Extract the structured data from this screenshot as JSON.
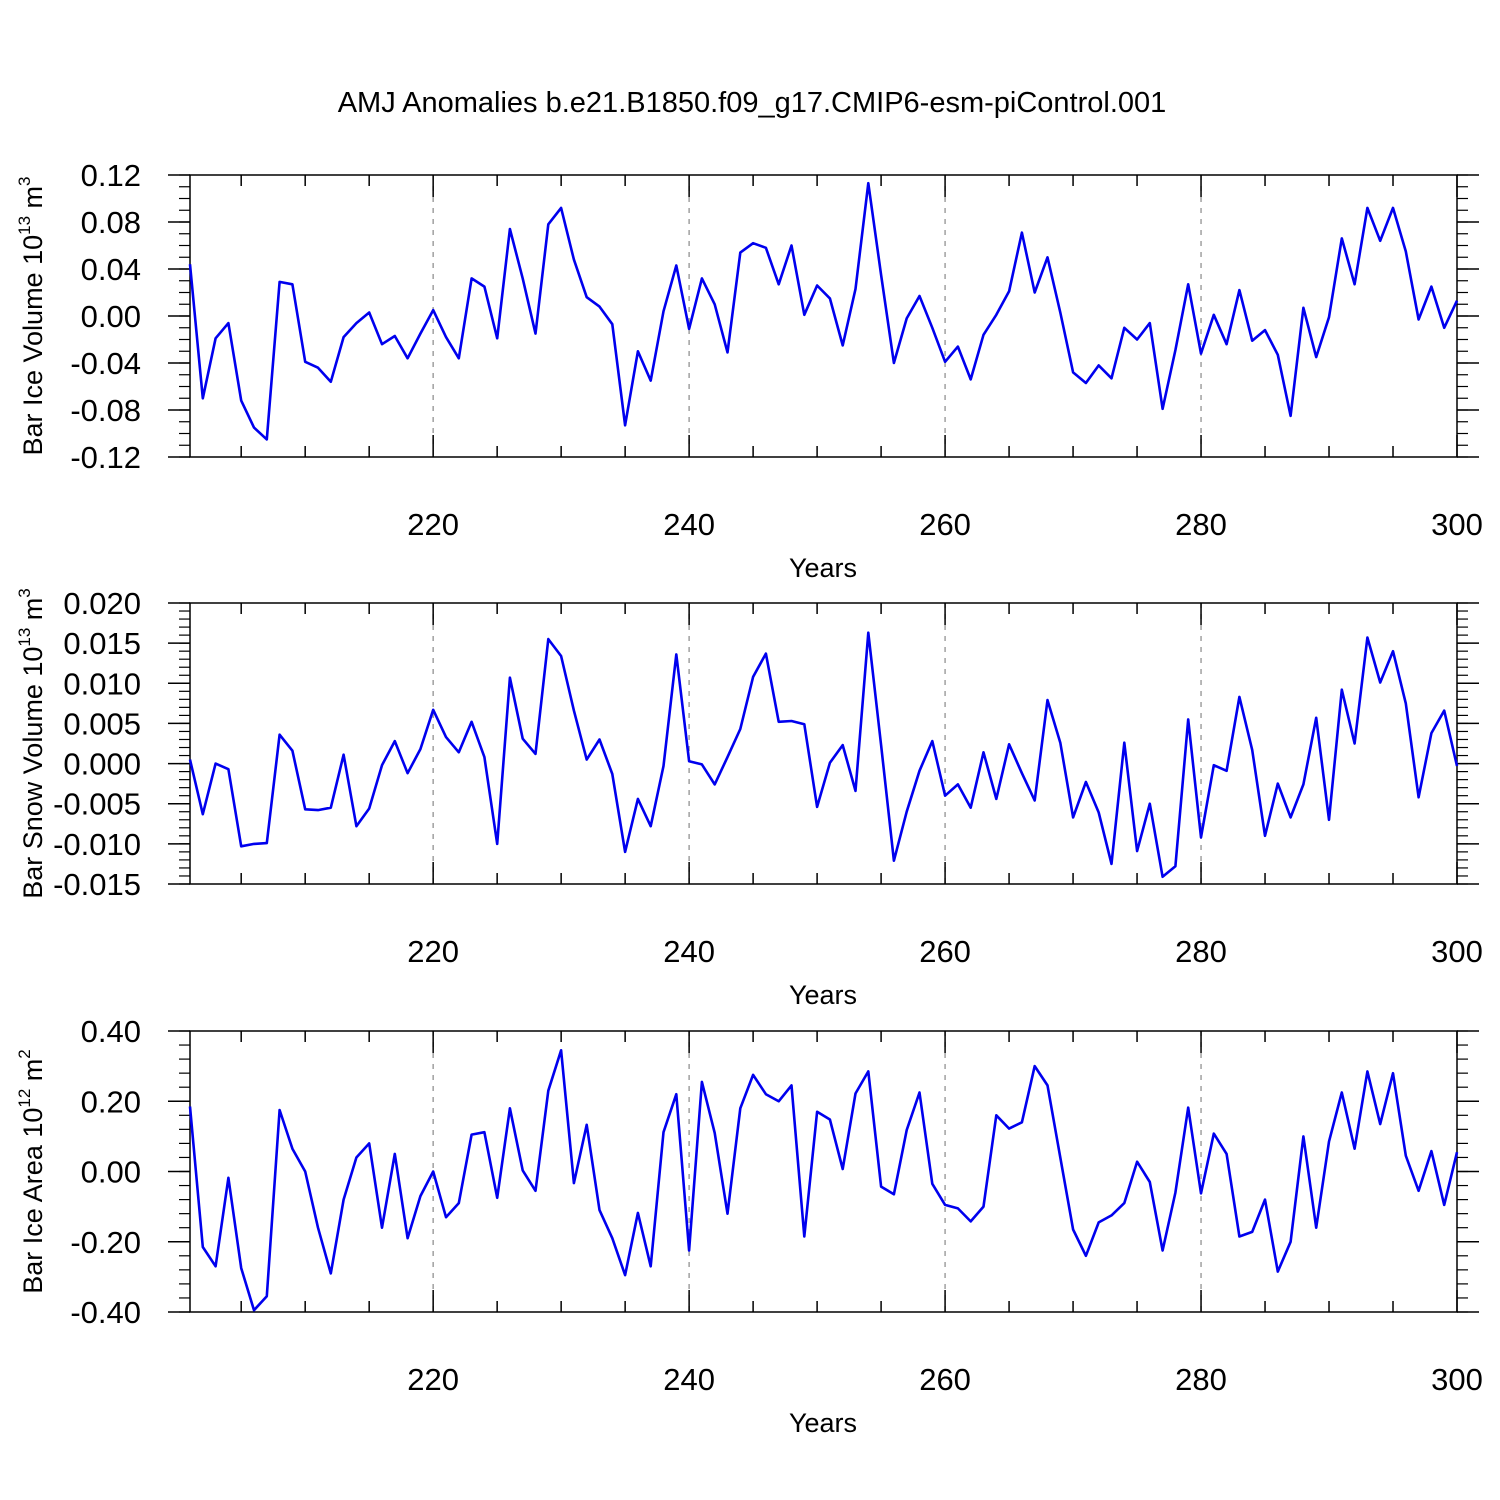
{
  "title": "AMJ Anomalies b.e21.B1850.f09_g17.CMIP6-esm-piControl.001",
  "colors": {
    "line": "#0000ee",
    "axis": "#000000",
    "grid": "#a0a0a0"
  },
  "chart_data": [
    {
      "type": "line",
      "ylabel_main": "Bar Ice Volume 10",
      "ylabel_exp": "13",
      "ylabel_unit": " m",
      "ylabel_unit_exp": "3",
      "xlabel": "Years",
      "xlim": [
        201,
        300
      ],
      "ylim": [
        -0.12,
        0.12
      ],
      "xticks": [
        220,
        240,
        260,
        280,
        300
      ],
      "xtick_labels": [
        "220",
        "240",
        "260",
        "280",
        "300"
      ],
      "yticks": [
        -0.12,
        -0.08,
        -0.04,
        0,
        0.04,
        0.08,
        0.12
      ],
      "ytick_labels": [
        "-0.12",
        "-0.08",
        "-0.04",
        "0.00",
        "0.04",
        "0.08",
        "0.12"
      ],
      "yminor": 0.01,
      "grid_x": true,
      "x_start": 201,
      "values": [
        0.044,
        -0.07,
        -0.019,
        -0.006,
        -0.072,
        -0.095,
        -0.105,
        0.029,
        0.027,
        -0.039,
        -0.044,
        -0.056,
        -0.018,
        -0.006,
        0.003,
        -0.024,
        -0.017,
        -0.036,
        -0.015,
        0.005,
        -0.018,
        -0.036,
        0.032,
        0.025,
        -0.019,
        0.074,
        0.032,
        -0.015,
        0.078,
        0.092,
        0.048,
        0.016,
        0.008,
        -0.007,
        -0.093,
        -0.03,
        -0.055,
        0.004,
        0.043,
        -0.011,
        0.032,
        0.01,
        -0.031,
        0.054,
        0.062,
        0.058,
        0.027,
        0.06,
        0.001,
        0.026,
        0.015,
        -0.025,
        0.023,
        0.113,
        0.035,
        -0.04,
        -0.002,
        0.017,
        -0.01,
        -0.039,
        -0.026,
        -0.054,
        -0.016,
        0.001,
        0.021,
        0.071,
        0.02,
        0.05,
        0.003,
        -0.048,
        -0.057,
        -0.042,
        -0.053,
        -0.01,
        -0.02,
        -0.006,
        -0.079,
        -0.029,
        0.027,
        -0.032,
        0.001,
        -0.024,
        0.022,
        -0.021,
        -0.012,
        -0.033,
        -0.085,
        0.007,
        -0.035,
        -0.001,
        0.066,
        0.027,
        0.092,
        0.064,
        0.092,
        0.055,
        -0.003,
        0.025,
        -0.01,
        0.013
      ]
    },
    {
      "type": "line",
      "ylabel_main": "Bar Snow Volume 10",
      "ylabel_exp": "13",
      "ylabel_unit": " m",
      "ylabel_unit_exp": "3",
      "xlabel": "Years",
      "xlim": [
        201,
        300
      ],
      "ylim": [
        -0.015,
        0.02
      ],
      "xticks": [
        220,
        240,
        260,
        280,
        300
      ],
      "xtick_labels": [
        "220",
        "240",
        "260",
        "280",
        "300"
      ],
      "yticks": [
        -0.015,
        -0.01,
        -0.005,
        0,
        0.005,
        0.01,
        0.015,
        0.02
      ],
      "ytick_labels": [
        "-0.015",
        "-0.010",
        "-0.005",
        "0.000",
        "0.005",
        "0.010",
        "0.015",
        "0.020"
      ],
      "yminor": 0.001,
      "grid_x": true,
      "x_start": 201,
      "values": [
        0.0005,
        -0.0063,
        0.0,
        -0.0007,
        -0.0103,
        -0.01,
        -0.0099,
        0.0036,
        0.0016,
        -0.0057,
        -0.0058,
        -0.0055,
        0.0011,
        -0.0078,
        -0.0056,
        -0.0002,
        0.0028,
        -0.0012,
        0.0018,
        0.0067,
        0.0033,
        0.0014,
        0.0052,
        0.0008,
        -0.01,
        0.0107,
        0.0031,
        0.0012,
        0.0155,
        0.0134,
        0.0066,
        0.0005,
        0.003,
        -0.0013,
        -0.011,
        -0.0044,
        -0.0078,
        -0.0003,
        0.0136,
        0.0003,
        -0.0001,
        -0.0026,
        0.0008,
        0.0043,
        0.0108,
        0.0137,
        0.0052,
        0.0053,
        0.0049,
        -0.0054,
        0.0001,
        0.0023,
        -0.0034,
        0.0163,
        0.0023,
        -0.0121,
        -0.006,
        -0.0009,
        0.0028,
        -0.004,
        -0.0026,
        -0.0055,
        0.0014,
        -0.0044,
        0.0024,
        -0.0012,
        -0.0046,
        0.0079,
        0.0026,
        -0.0067,
        -0.0023,
        -0.0061,
        -0.0125,
        0.0026,
        -0.0109,
        -0.005,
        -0.0141,
        -0.0128,
        0.0055,
        -0.0092,
        -0.0002,
        -0.0009,
        0.0083,
        0.0017,
        -0.009,
        -0.0025,
        -0.0067,
        -0.0026,
        0.0057,
        -0.007,
        0.0092,
        0.0025,
        0.0157,
        0.0101,
        0.014,
        0.0075,
        -0.0042,
        0.0038,
        0.0066,
        -0.0003
      ]
    },
    {
      "type": "line",
      "ylabel_main": "Bar Ice Area 10",
      "ylabel_exp": "12",
      "ylabel_unit": " m",
      "ylabel_unit_exp": "2",
      "xlabel": "Years",
      "xlim": [
        201,
        300
      ],
      "ylim": [
        -0.4,
        0.4
      ],
      "xticks": [
        220,
        240,
        260,
        280,
        300
      ],
      "xtick_labels": [
        "220",
        "240",
        "260",
        "280",
        "300"
      ],
      "yticks": [
        -0.4,
        -0.2,
        0,
        0.2,
        0.4
      ],
      "ytick_labels": [
        "-0.40",
        "-0.20",
        "0.00",
        "0.20",
        "0.40"
      ],
      "yminor": 0.04,
      "grid_x": true,
      "x_start": 201,
      "values": [
        0.185,
        -0.215,
        -0.27,
        -0.018,
        -0.275,
        -0.395,
        -0.355,
        0.175,
        0.065,
        0.0,
        -0.16,
        -0.29,
        -0.08,
        0.04,
        0.08,
        -0.16,
        0.05,
        -0.19,
        -0.07,
        0.0,
        -0.13,
        -0.09,
        0.105,
        0.112,
        -0.075,
        0.18,
        0.003,
        -0.055,
        0.23,
        0.345,
        -0.033,
        0.133,
        -0.11,
        -0.19,
        -0.295,
        -0.118,
        -0.27,
        0.112,
        0.22,
        -0.225,
        0.255,
        0.11,
        -0.12,
        0.18,
        0.275,
        0.22,
        0.2,
        0.245,
        -0.185,
        0.17,
        0.148,
        0.007,
        0.222,
        0.285,
        -0.043,
        -0.065,
        0.118,
        0.225,
        -0.035,
        -0.095,
        -0.105,
        -0.142,
        -0.1,
        0.16,
        0.122,
        0.14,
        0.3,
        0.245,
        0.04,
        -0.165,
        -0.24,
        -0.145,
        -0.125,
        -0.09,
        0.028,
        -0.03,
        -0.225,
        -0.06,
        0.182,
        -0.062,
        0.108,
        0.05,
        -0.185,
        -0.172,
        -0.08,
        -0.285,
        -0.2,
        0.1,
        -0.16,
        0.085,
        0.225,
        0.065,
        0.285,
        0.135,
        0.28,
        0.045,
        -0.055,
        0.058,
        -0.095,
        0.055
      ]
    }
  ]
}
